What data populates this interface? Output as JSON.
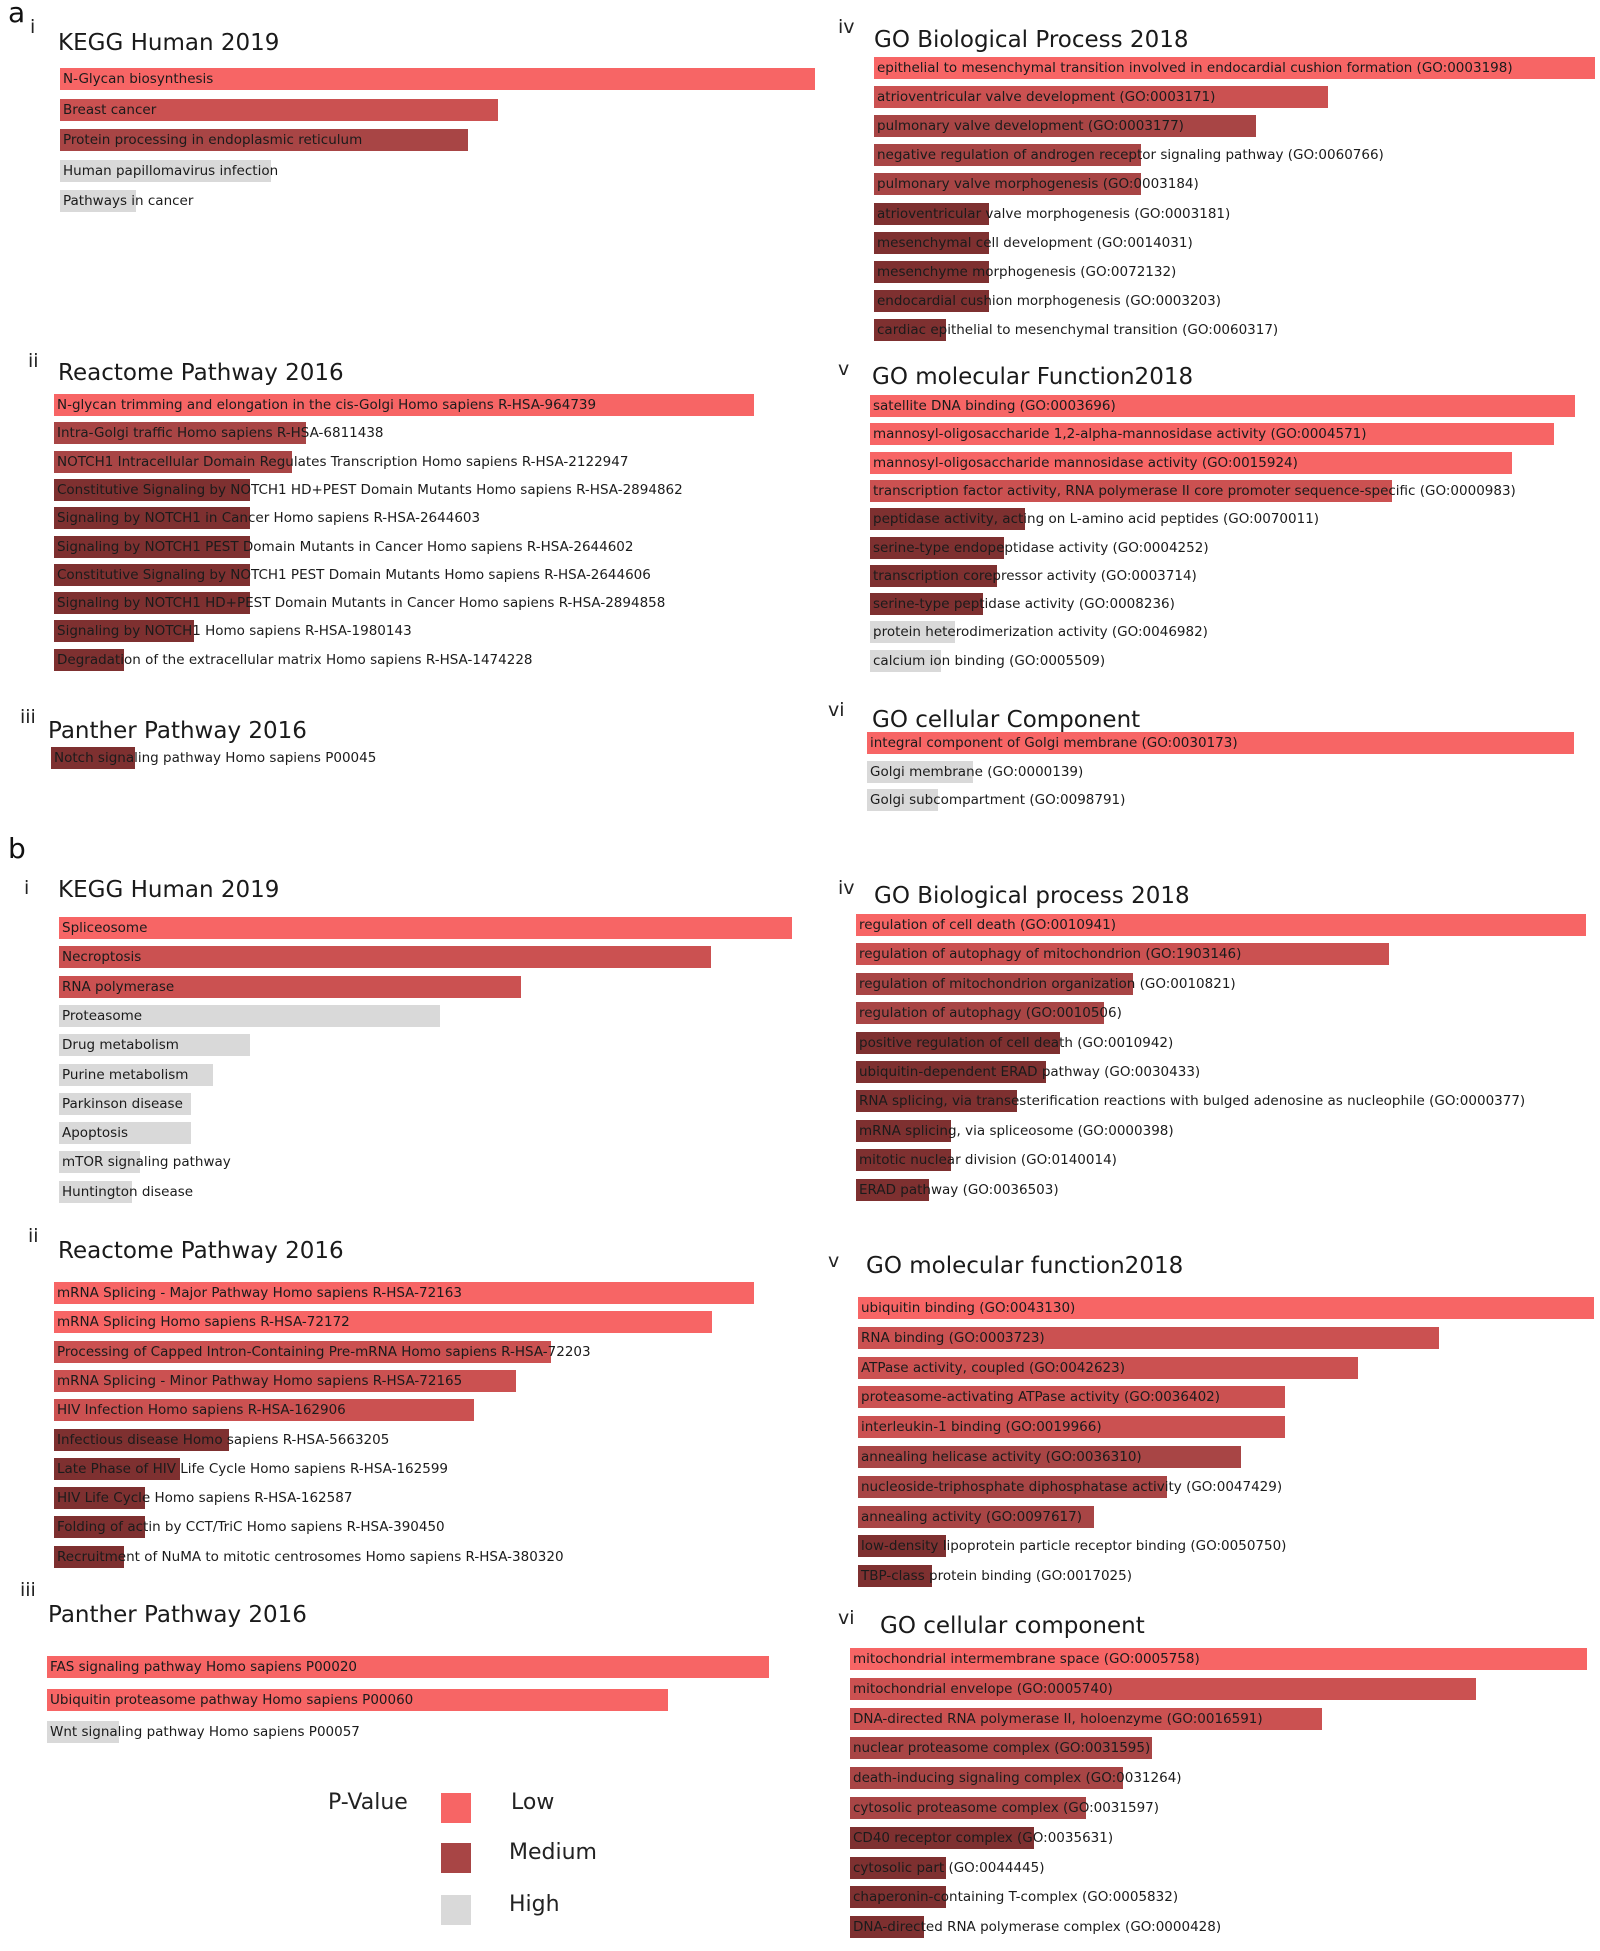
{
  "colors": {
    "low": "#f76565",
    "medium_light": "#cb5151",
    "medium": "#a84545",
    "medium_dark": "#7e3030",
    "high": "#d9d9d9"
  },
  "panel_labels": {
    "a": "a",
    "b": "b"
  },
  "legend": {
    "title": "P-Value",
    "low": "Low",
    "medium": "Medium",
    "high": "High"
  },
  "chart_data": [
    {
      "panel": "a",
      "id": "i",
      "type": "bar",
      "title": "KEGG Human 2019",
      "categories": [
        "N-Glycan biosynthesis",
        "Breast cancer",
        "Protein processing in endoplasmic reticulum",
        "Human papillomavirus infection",
        "Pathways in cancer"
      ],
      "values": [
        1.0,
        0.58,
        0.54,
        0.28,
        0.1
      ],
      "significance": [
        "low",
        "medium",
        "medium",
        "high",
        "high"
      ]
    },
    {
      "panel": "a",
      "id": "ii",
      "type": "bar",
      "title": "Reactome Pathway 2016",
      "categories": [
        "N-glycan trimming and elongation in the cis-Golgi Homo sapiens R-HSA-964739",
        "Intra-Golgi traffic Homo sapiens R-HSA-6811438",
        "NOTCH1 Intracellular Domain Regulates Transcription Homo sapiens R-HSA-2122947",
        "Constitutive Signaling by NOTCH1 HD+PEST Domain Mutants Homo sapiens R-HSA-2894862",
        "Signaling by NOTCH1 in Cancer Homo sapiens R-HSA-2644603",
        "Signaling by NOTCH1 PEST Domain Mutants in Cancer Homo sapiens R-HSA-2644602",
        "Constitutive Signaling by NOTCH1 PEST Domain Mutants Homo sapiens R-HSA-2644606",
        "Signaling by NOTCH1 HD+PEST Domain Mutants in Cancer Homo sapiens R-HSA-2894858",
        "Signaling by NOTCH1 Homo sapiens R-HSA-1980143",
        "Degradation of the extracellular matrix Homo sapiens R-HSA-1474228"
      ],
      "values": [
        1.0,
        0.36,
        0.34,
        0.28,
        0.28,
        0.28,
        0.28,
        0.28,
        0.2,
        0.1
      ],
      "significance": [
        "low",
        "medium",
        "medium",
        "medium",
        "medium",
        "medium",
        "medium",
        "medium",
        "medium",
        "medium"
      ]
    },
    {
      "panel": "a",
      "id": "iii",
      "type": "bar",
      "title": "Panther Pathway 2016",
      "categories": [
        "Notch signaling pathway Homo sapiens P00045"
      ],
      "values": [
        0.23
      ],
      "significance": [
        "medium"
      ]
    },
    {
      "panel": "a",
      "id": "iv",
      "type": "bar",
      "title": "GO Biological Process 2018",
      "categories": [
        "epithelial to mesenchymal transition involved in endocardial cushion formation (GO:0003198)",
        "atrioventricular valve development (GO:0003171)",
        "pulmonary valve development (GO:0003177)",
        "negative regulation of androgen receptor signaling pathway (GO:0060766)",
        "pulmonary valve morphogenesis (GO:0003184)",
        "atrioventricular valve morphogenesis (GO:0003181)",
        "mesenchymal cell development (GO:0014031)",
        "mesenchyme morphogenesis (GO:0072132)",
        "endocardial cushion morphogenesis (GO:0003203)",
        "cardiac epithelial to mesenchymal transition (GO:0060317)"
      ],
      "values": [
        1.0,
        0.63,
        0.53,
        0.37,
        0.37,
        0.16,
        0.16,
        0.16,
        0.16,
        0.1
      ],
      "significance": [
        "low",
        "medium",
        "medium",
        "medium",
        "medium",
        "medium",
        "medium",
        "medium",
        "medium",
        "medium"
      ]
    },
    {
      "panel": "a",
      "id": "v",
      "type": "bar",
      "title": "GO molecular Function2018",
      "categories": [
        "satellite DNA binding (GO:0003696)",
        "mannosyl-oligosaccharide 1,2-alpha-mannosidase activity (GO:0004571)",
        "mannosyl-oligosaccharide mannosidase activity (GO:0015924)",
        "transcription factor activity, RNA polymerase II core promoter sequence-specific (GO:0000983)",
        "peptidase activity, acting on L-amino acid peptides (GO:0070011)",
        "serine-type endopeptidase activity (GO:0004252)",
        "transcription corepressor activity (GO:0003714)",
        "serine-type peptidase activity (GO:0008236)",
        "protein heterodimerization activity (GO:0046982)",
        "calcium ion binding (GO:0005509)"
      ],
      "values": [
        1.0,
        0.97,
        0.91,
        0.74,
        0.22,
        0.19,
        0.18,
        0.16,
        0.12,
        0.1
      ],
      "significance": [
        "low",
        "low",
        "low",
        "medium",
        "medium",
        "medium",
        "medium",
        "medium",
        "high",
        "high"
      ]
    },
    {
      "panel": "a",
      "id": "vi",
      "type": "bar",
      "title": "GO cellular Component",
      "categories": [
        "integral component of Golgi membrane (GO:0030173)",
        "Golgi membrane (GO:0000139)",
        "Golgi subcompartment (GO:0098791)"
      ],
      "values": [
        1.0,
        0.15,
        0.1
      ],
      "significance": [
        "low",
        "high",
        "high"
      ]
    },
    {
      "panel": "b",
      "id": "i",
      "type": "bar",
      "title": "KEGG Human 2019",
      "categories": [
        "Spliceosome",
        "Necroptosis",
        "RNA polymerase",
        "Proteasome",
        "Drug metabolism",
        "Purine metabolism",
        "Parkinson disease",
        "Apoptosis",
        "mTOR signaling pathway",
        "Huntington disease"
      ],
      "values": [
        1.0,
        0.89,
        0.63,
        0.52,
        0.26,
        0.21,
        0.18,
        0.18,
        0.11,
        0.1
      ],
      "significance": [
        "low",
        "medium",
        "medium",
        "high",
        "high",
        "high",
        "high",
        "high",
        "high",
        "high"
      ]
    },
    {
      "panel": "b",
      "id": "ii",
      "type": "bar",
      "title": "Reactome Pathway 2016",
      "categories": [
        "mRNA Splicing - Major Pathway Homo sapiens R-HSA-72163",
        "mRNA Splicing Homo sapiens R-HSA-72172",
        "Processing of Capped Intron-Containing Pre-mRNA Homo sapiens R-HSA-72203",
        "mRNA Splicing - Minor Pathway Homo sapiens R-HSA-72165",
        "HIV Infection Homo sapiens R-HSA-162906",
        "Infectious disease Homo sapiens R-HSA-5663205",
        "Late Phase of HIV Life Cycle Homo sapiens R-HSA-162599",
        "HIV Life Cycle Homo sapiens R-HSA-162587",
        "Folding of actin by CCT/TriC Homo sapiens R-HSA-390450",
        "Recruitment of NuMA to mitotic centrosomes Homo sapiens R-HSA-380320"
      ],
      "values": [
        1.0,
        0.94,
        0.71,
        0.66,
        0.6,
        0.25,
        0.18,
        0.13,
        0.13,
        0.1
      ],
      "significance": [
        "low",
        "low",
        "medium",
        "medium",
        "medium",
        "medium",
        "medium",
        "medium",
        "medium",
        "medium"
      ]
    },
    {
      "panel": "b",
      "id": "iii",
      "type": "bar",
      "title": "Panther Pathway 2016",
      "categories": [
        "FAS signaling pathway Homo sapiens P00020",
        "Ubiquitin proteasome pathway Homo sapiens P00060",
        "Wnt signaling pathway Homo sapiens P00057"
      ],
      "values": [
        1.0,
        0.86,
        0.1
      ],
      "significance": [
        "low",
        "low",
        "high"
      ]
    },
    {
      "panel": "b",
      "id": "iv",
      "type": "bar",
      "title": "GO Biological process 2018",
      "categories": [
        "regulation of cell death (GO:0010941)",
        "regulation of autophagy of mitochondrion (GO:1903146)",
        "regulation of mitochondrion organization (GO:0010821)",
        "regulation of autophagy (GO:0010506)",
        "positive regulation of cell death (GO:0010942)",
        "ubiquitin-dependent ERAD pathway (GO:0030433)",
        "RNA splicing, via transesterification reactions with bulged adenosine as nucleophile (GO:0000377)",
        "mRNA splicing, via spliceosome (GO:0000398)",
        "mitotic nuclear division (GO:0140014)",
        "ERAD pathway (GO:0036503)"
      ],
      "values": [
        1.0,
        0.73,
        0.38,
        0.34,
        0.28,
        0.26,
        0.22,
        0.13,
        0.13,
        0.1
      ],
      "significance": [
        "low",
        "medium",
        "medium",
        "medium",
        "medium",
        "medium",
        "medium",
        "medium",
        "medium",
        "medium"
      ]
    },
    {
      "panel": "b",
      "id": "v",
      "type": "bar",
      "title": "GO molecular function2018",
      "categories": [
        "ubiquitin binding (GO:0043130)",
        "RNA binding (GO:0003723)",
        "ATPase activity, coupled (GO:0042623)",
        "proteasome-activating ATPase activity (GO:0036402)",
        "interleukin-1 binding (GO:0019966)",
        "annealing helicase activity (GO:0036310)",
        "nucleoside-triphosphate diphosphatase activity (GO:0047429)",
        "annealing activity (GO:0097617)",
        "low-density lipoprotein particle receptor binding (GO:0050750)",
        "TBP-class protein binding (GO:0017025)"
      ],
      "values": [
        1.0,
        0.79,
        0.68,
        0.58,
        0.58,
        0.52,
        0.42,
        0.32,
        0.12,
        0.1
      ],
      "significance": [
        "low",
        "medium",
        "medium",
        "medium",
        "medium",
        "medium",
        "medium",
        "medium",
        "medium",
        "medium"
      ]
    },
    {
      "panel": "b",
      "id": "vi",
      "type": "bar",
      "title": "GO cellular component",
      "categories": [
        "mitochondrial intermembrane space (GO:0005758)",
        "mitochondrial envelope (GO:0005740)",
        "DNA-directed RNA polymerase II, holoenzyme (GO:0016591)",
        "nuclear proteasome complex (GO:0031595)",
        "death-inducing signaling complex (GO:0031264)",
        "cytosolic proteasome complex (GO:0031597)",
        "CD40 receptor complex (GO:0035631)",
        "cytosolic part (GO:0044445)",
        "chaperonin-containing T-complex (GO:0005832)",
        "DNA-directed RNA polymerase complex (GO:0000428)"
      ],
      "values": [
        1.0,
        0.85,
        0.64,
        0.41,
        0.37,
        0.32,
        0.25,
        0.13,
        0.13,
        0.1
      ],
      "significance": [
        "low",
        "medium",
        "medium",
        "medium",
        "medium",
        "medium",
        "medium",
        "medium",
        "medium",
        "medium"
      ]
    }
  ]
}
